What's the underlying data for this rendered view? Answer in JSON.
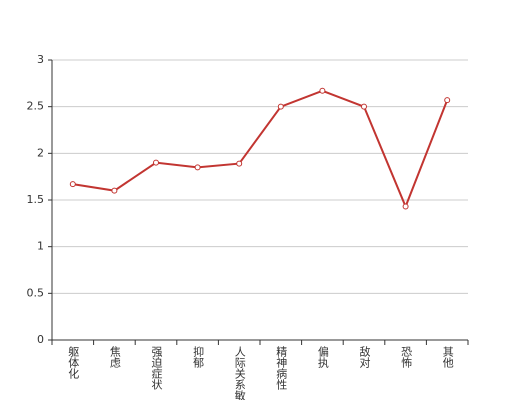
{
  "chart_data": {
    "type": "line",
    "categories": [
      "躯体化",
      "焦虑",
      "强迫症状",
      "抑郁",
      "人际关系敏感",
      "精神病性",
      "偏执",
      "敌对",
      "恐怖",
      "其他"
    ],
    "series": [
      {
        "color": "#c23531",
        "values": [
          1.67,
          1.6,
          1.9,
          1.85,
          1.89,
          2.5,
          2.67,
          2.5,
          1.43,
          2.57
        ]
      }
    ],
    "ylim": [
      0,
      3
    ],
    "yticks": [
      0,
      0.5,
      1,
      1.5,
      2,
      2.5,
      3
    ],
    "grid": true
  }
}
